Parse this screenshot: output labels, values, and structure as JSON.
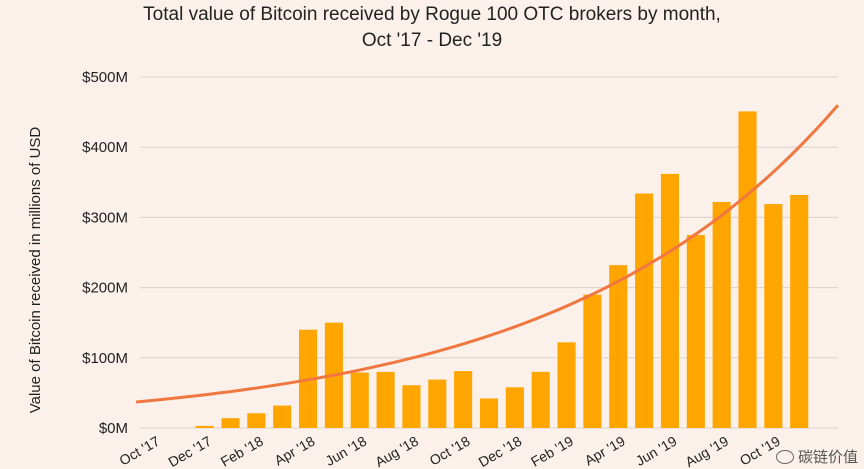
{
  "chart_data": {
    "type": "bar",
    "title_line1": "Total value of Bitcoin received by Rogue 100 OTC brokers by month,",
    "title_line2": "Oct '17 - Dec '19",
    "ylabel": "Value of Bitcoin received in millions of USD",
    "xlabel": "",
    "ylim": [
      0,
      500
    ],
    "yticks": [
      {
        "value": 0,
        "label": "$0M"
      },
      {
        "value": 100,
        "label": "$100M"
      },
      {
        "value": 200,
        "label": "$200M"
      },
      {
        "value": 300,
        "label": "$300M"
      },
      {
        "value": 400,
        "label": "$400M"
      },
      {
        "value": 500,
        "label": "$500M"
      }
    ],
    "categories": [
      "Oct '17",
      "Nov '17",
      "Dec '17",
      "Jan '18",
      "Feb '18",
      "Mar '18",
      "Apr '18",
      "May '18",
      "Jun '18",
      "Jul '18",
      "Aug '18",
      "Sep '18",
      "Oct '18",
      "Nov '18",
      "Dec '18",
      "Jan '19",
      "Feb '19",
      "Mar '19",
      "Apr '19",
      "May '19",
      "Jun '19",
      "Jul '19",
      "Aug '19",
      "Sep '19",
      "Oct '19",
      "Nov '19",
      "Dec '19"
    ],
    "visible_x_tick_labels": [
      "Oct '17",
      "Dec '17",
      "Feb '18",
      "Apr '18",
      "Jun '18",
      "Aug '18",
      "Oct '18",
      "Dec '18",
      "Feb '19",
      "Apr '19",
      "Jun '19",
      "Aug '19",
      "Oct '19"
    ],
    "values": [
      0,
      0,
      3,
      14,
      21,
      32,
      140,
      150,
      79,
      80,
      61,
      69,
      81,
      42,
      58,
      80,
      122,
      190,
      232,
      334,
      362,
      275,
      322,
      451,
      319,
      332,
      0
    ],
    "trendline": {
      "type": "exponential",
      "start_value": 37,
      "end_value": 460
    },
    "bar_color": "#ffa500",
    "trend_color": "#f07840",
    "grid": true
  },
  "watermark": {
    "text": "碳链价值",
    "icon": "wechat-icon"
  }
}
